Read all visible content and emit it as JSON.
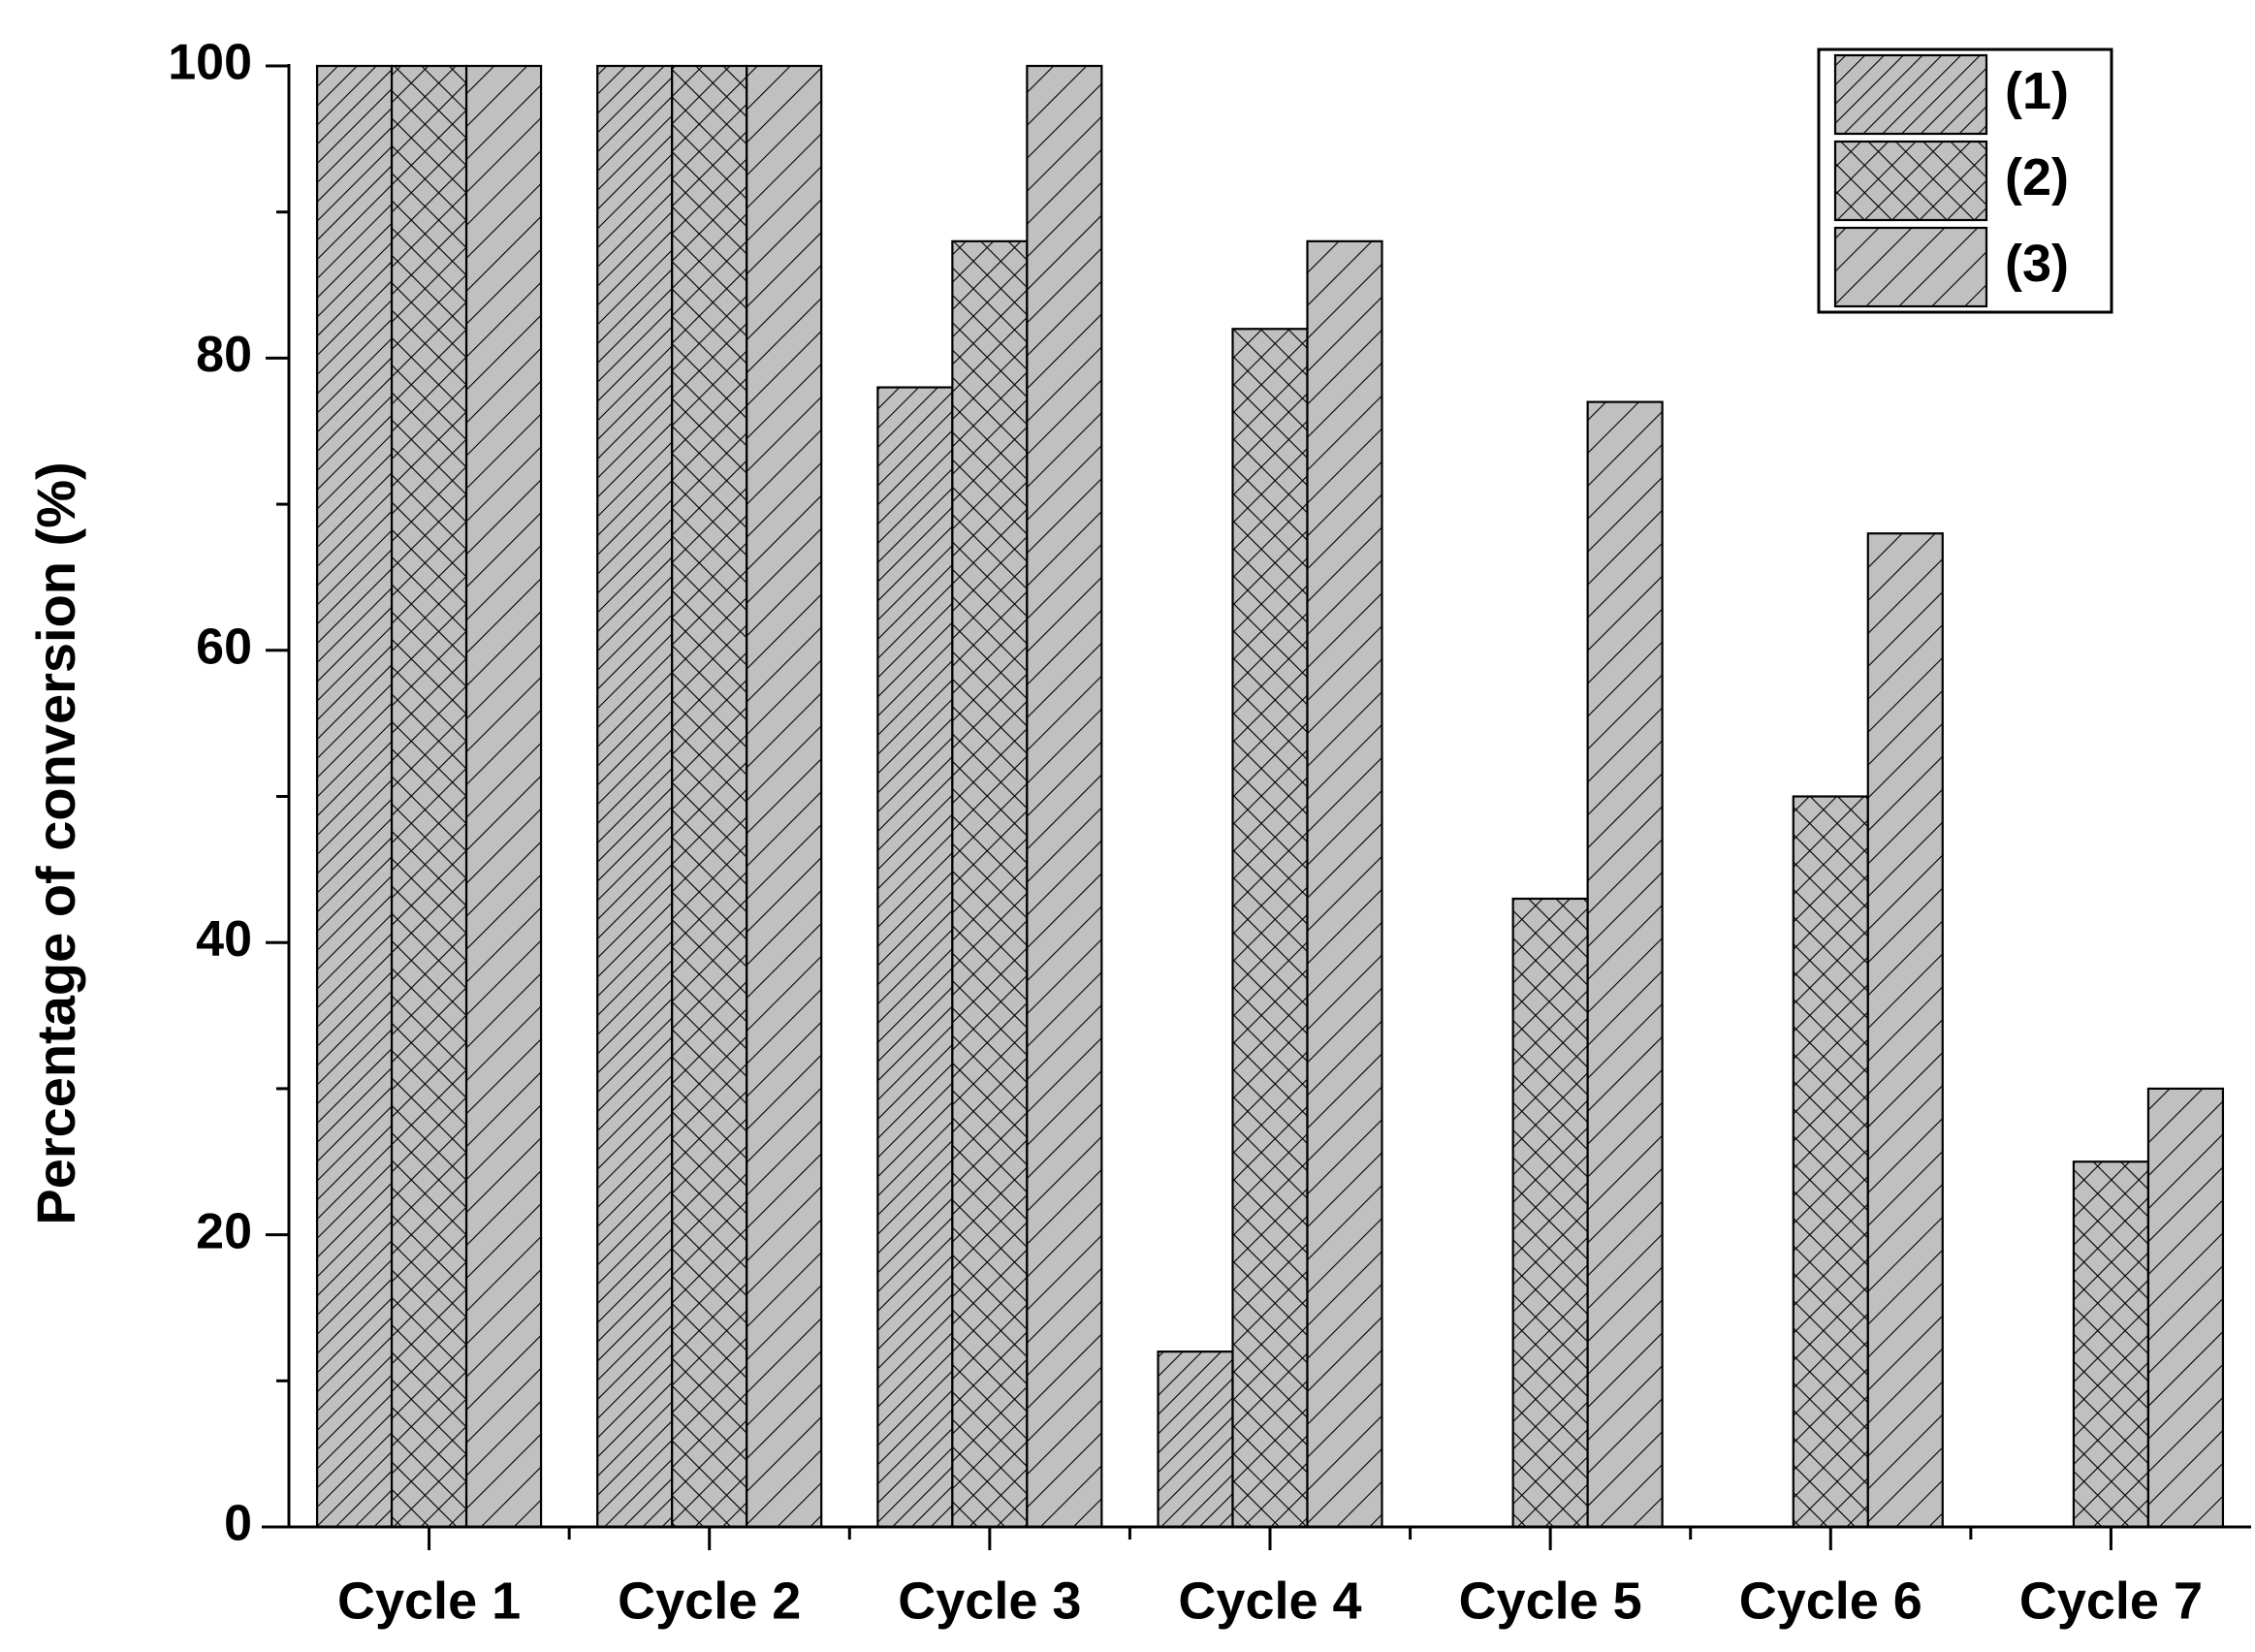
{
  "chart_data": {
    "type": "bar",
    "y_label": "Percentage of conversion (%)",
    "categories": [
      "Cycle 1",
      "Cycle 2",
      "Cycle 3",
      "Cycle 4",
      "Cycle 5",
      "Cycle 6",
      "Cycle 7"
    ],
    "series": [
      {
        "name": "(1)",
        "color": "#c0c0c0",
        "pattern": "dense-diagonal",
        "values": [
          100,
          100,
          78,
          12,
          0,
          0,
          0
        ]
      },
      {
        "name": "(2)",
        "color": "#c0c0c0",
        "pattern": "crosshatch",
        "values": [
          100,
          100,
          88,
          82,
          43,
          50,
          25
        ]
      },
      {
        "name": "(3)",
        "color": "#c0c0c0",
        "pattern": "sparse-diagonal",
        "values": [
          100,
          100,
          100,
          88,
          77,
          68,
          30
        ]
      }
    ],
    "ylim": [
      0,
      100
    ],
    "yticks": [
      0,
      20,
      40,
      60,
      80,
      100
    ],
    "grid": false,
    "legend": "upper right"
  }
}
